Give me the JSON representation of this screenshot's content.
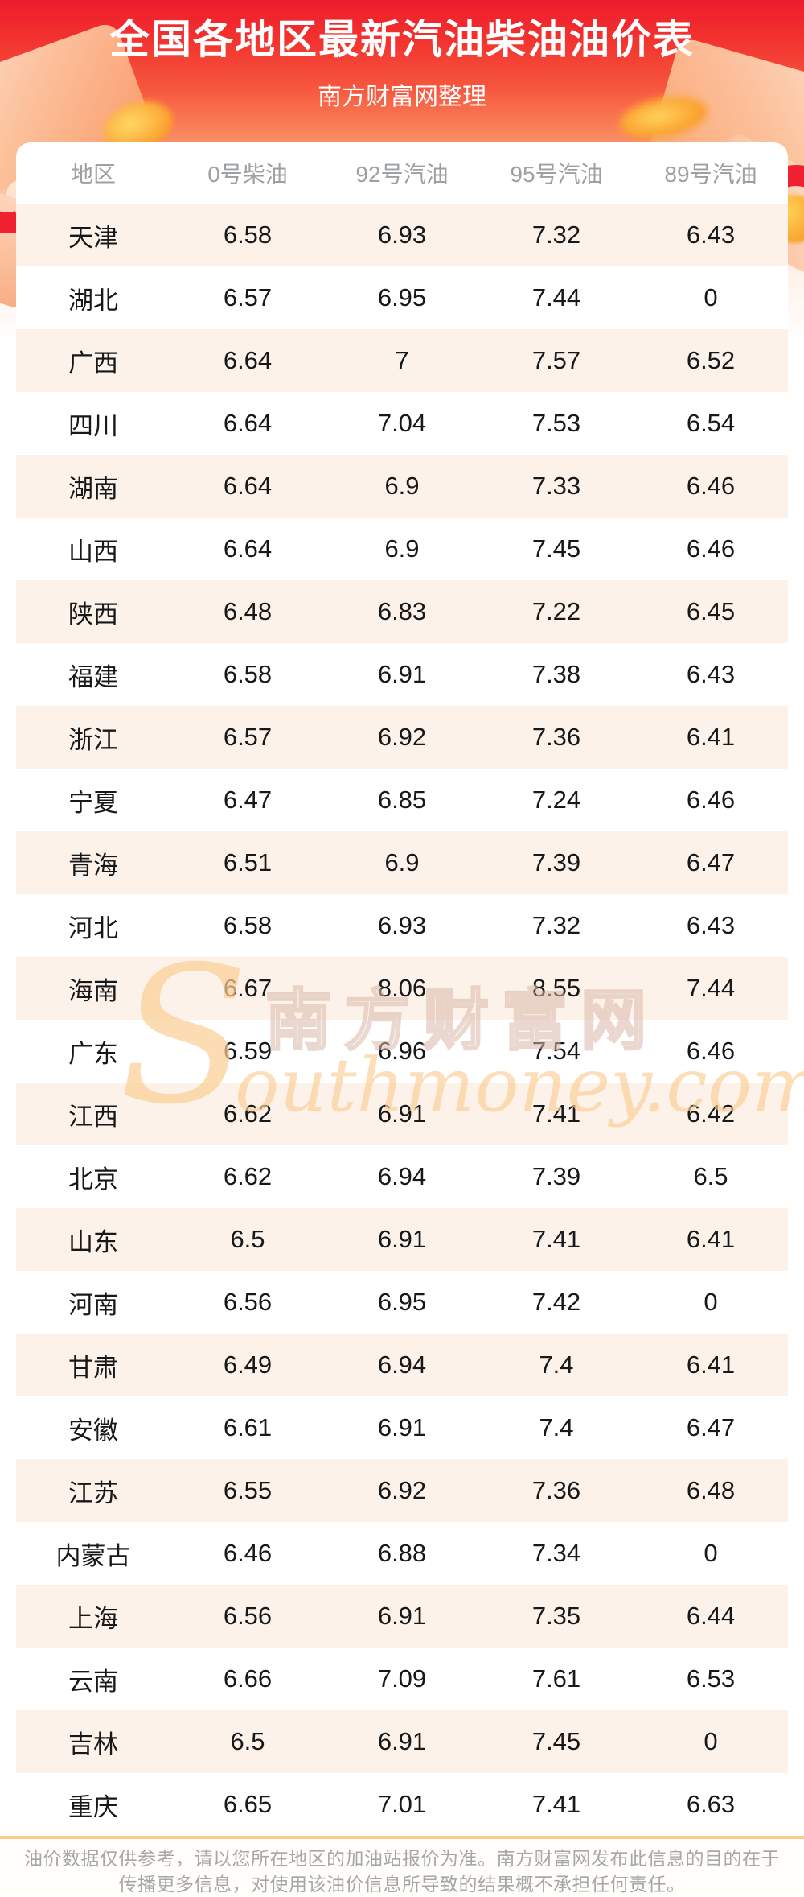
{
  "header": {
    "title": "全国各地区最新汽油柴油油价表",
    "subtitle": "南方财富网整理"
  },
  "table": {
    "columns": [
      "地区",
      "0号柴油",
      "92号汽油",
      "95号汽油",
      "89号汽油"
    ],
    "rows": [
      [
        "天津",
        "6.58",
        "6.93",
        "7.32",
        "6.43"
      ],
      [
        "湖北",
        "6.57",
        "6.95",
        "7.44",
        "0"
      ],
      [
        "广西",
        "6.64",
        "7",
        "7.57",
        "6.52"
      ],
      [
        "四川",
        "6.64",
        "7.04",
        "7.53",
        "6.54"
      ],
      [
        "湖南",
        "6.64",
        "6.9",
        "7.33",
        "6.46"
      ],
      [
        "山西",
        "6.64",
        "6.9",
        "7.45",
        "6.46"
      ],
      [
        "陕西",
        "6.48",
        "6.83",
        "7.22",
        "6.45"
      ],
      [
        "福建",
        "6.58",
        "6.91",
        "7.38",
        "6.43"
      ],
      [
        "浙江",
        "6.57",
        "6.92",
        "7.36",
        "6.41"
      ],
      [
        "宁夏",
        "6.47",
        "6.85",
        "7.24",
        "6.46"
      ],
      [
        "青海",
        "6.51",
        "6.9",
        "7.39",
        "6.47"
      ],
      [
        "河北",
        "6.58",
        "6.93",
        "7.32",
        "6.43"
      ],
      [
        "海南",
        "6.67",
        "8.06",
        "8.55",
        "7.44"
      ],
      [
        "广东",
        "6.59",
        "6.96",
        "7.54",
        "6.46"
      ],
      [
        "江西",
        "6.62",
        "6.91",
        "7.41",
        "6.42"
      ],
      [
        "北京",
        "6.62",
        "6.94",
        "7.39",
        "6.5"
      ],
      [
        "山东",
        "6.5",
        "6.91",
        "7.41",
        "6.41"
      ],
      [
        "河南",
        "6.56",
        "6.95",
        "7.42",
        "0"
      ],
      [
        "甘肃",
        "6.49",
        "6.94",
        "7.4",
        "6.41"
      ],
      [
        "安徽",
        "6.61",
        "6.91",
        "7.4",
        "6.47"
      ],
      [
        "江苏",
        "6.55",
        "6.92",
        "7.36",
        "6.48"
      ],
      [
        "内蒙古",
        "6.46",
        "6.88",
        "7.34",
        "0"
      ],
      [
        "上海",
        "6.56",
        "6.91",
        "7.35",
        "6.44"
      ],
      [
        "云南",
        "6.66",
        "7.09",
        "7.61",
        "6.53"
      ],
      [
        "吉林",
        "6.5",
        "6.91",
        "7.45",
        "0"
      ],
      [
        "重庆",
        "6.65",
        "7.01",
        "7.41",
        "6.63"
      ]
    ]
  },
  "watermark": {
    "initial": "S",
    "cn": "南方财富网",
    "en": "outhmoney.com"
  },
  "footer": {
    "disclaimer": "油价数据仅供参考，请以您所在地区的加油站报价为准。南方财富网发布此信息的目的在于传播更多信息，对使用该油价信息所导致的结果概不承担任何责任。"
  },
  "colors": {
    "header_red_top": "#ee1c2e",
    "header_red_bottom": "#fba97e",
    "row_stripe": "#fdf2e9",
    "footer_line": "#fbc98c",
    "watermark_gold": "#face96",
    "header_text": "#9da0a3",
    "cell_text": "#17181a",
    "footer_text": "#a7a7a7"
  }
}
